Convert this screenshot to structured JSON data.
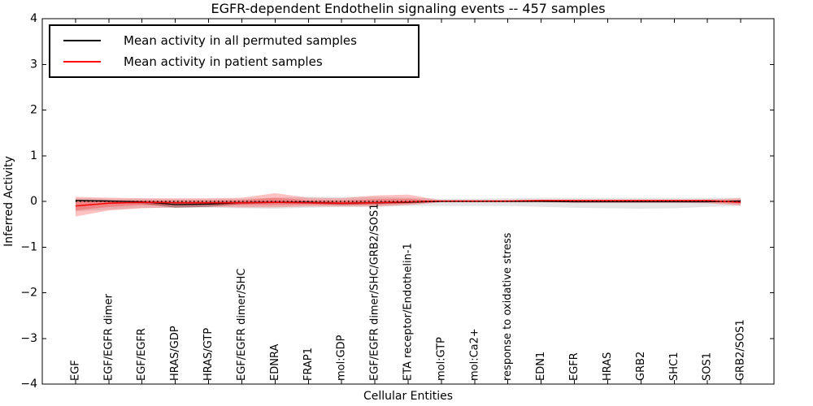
{
  "chart_data": {
    "type": "line",
    "title": "EGFR-dependent Endothelin signaling events -- 457 samples",
    "xlabel": "Cellular Entities",
    "ylabel": "Inferred Activity",
    "ylim": [
      -4,
      4
    ],
    "yticks": [
      -4,
      -3,
      -2,
      -1,
      0,
      1,
      2,
      3,
      4
    ],
    "grid": false,
    "legend_position": "upper left",
    "zero_line": {
      "style": "dotted",
      "color": "#000000",
      "y": 0
    },
    "categories": [
      "EGF",
      "EGF/EGFR dimer",
      "EGF/EGFR",
      "HRAS/GDP",
      "HRAS/GTP",
      "EGF/EGFR dimer/SHC",
      "EDNRA",
      "FRAP1",
      "mol:GDP",
      "EGF/EGFR dimer/SHC/GRB2/SOS1",
      "ETA receptor/Endothelin-1",
      "mol:GTP",
      "mol:Ca2+",
      "response to oxidative stress",
      "EDN1",
      "EGFR",
      "HRAS",
      "GRB2",
      "SHC1",
      "SOS1",
      "GRB2/SOS1"
    ],
    "legend": [
      {
        "label": "Mean activity in all permuted samples",
        "color": "#000000"
      },
      {
        "label": "Mean activity in patient samples",
        "color": "#ff0000"
      }
    ],
    "series": [
      {
        "name": "Mean activity in all permuted samples",
        "color": "#000000",
        "values": [
          0.02,
          0.01,
          -0.01,
          -0.07,
          -0.06,
          -0.03,
          -0.02,
          -0.02,
          -0.04,
          -0.03,
          -0.02,
          0.0,
          0.0,
          0.0,
          0.0,
          -0.01,
          -0.01,
          -0.01,
          -0.01,
          -0.01,
          0.01
        ]
      },
      {
        "name": "Mean activity in patient samples",
        "color": "#ff0000",
        "values": [
          -0.1,
          -0.04,
          -0.02,
          -0.03,
          -0.03,
          -0.03,
          -0.02,
          -0.03,
          -0.04,
          -0.03,
          -0.01,
          0.01,
          0.01,
          0.01,
          0.02,
          0.02,
          0.02,
          0.02,
          0.02,
          0.02,
          -0.02
        ]
      }
    ],
    "bands": [
      {
        "name": "permuted-outer-band",
        "color": "#000000",
        "opacity": 0.1,
        "upper": [
          0.07,
          0.06,
          0.06,
          0.05,
          0.05,
          0.06,
          0.08,
          0.1,
          0.1,
          0.1,
          0.08,
          0.06,
          0.06,
          0.07,
          0.08,
          0.08,
          0.08,
          0.08,
          0.08,
          0.08,
          0.08
        ],
        "lower": [
          -0.22,
          -0.18,
          -0.14,
          -0.14,
          -0.14,
          -0.15,
          -0.16,
          -0.14,
          -0.12,
          -0.12,
          -0.1,
          -0.1,
          -0.1,
          -0.1,
          -0.12,
          -0.14,
          -0.15,
          -0.16,
          -0.15,
          -0.12,
          -0.1
        ]
      },
      {
        "name": "permuted-inner-band",
        "color": "#000000",
        "opacity": 0.3,
        "upper": [
          0.035,
          0.02,
          0.01,
          -0.01,
          -0.01,
          0.0,
          0.01,
          0.0,
          -0.01,
          0.0,
          0.0,
          0.01,
          0.01,
          0.01,
          0.01,
          0.0,
          0.0,
          0.0,
          0.0,
          0.0,
          0.02
        ],
        "lower": [
          0.0,
          -0.02,
          -0.05,
          -0.14,
          -0.12,
          -0.06,
          -0.04,
          -0.05,
          -0.08,
          -0.06,
          -0.04,
          -0.01,
          -0.01,
          -0.01,
          -0.01,
          -0.02,
          -0.02,
          -0.02,
          -0.02,
          -0.02,
          -0.01
        ]
      },
      {
        "name": "patient-outer-band",
        "color": "#ff0000",
        "opacity": 0.24,
        "upper": [
          0.1,
          0.08,
          0.07,
          0.07,
          0.07,
          0.08,
          0.18,
          0.08,
          0.07,
          0.13,
          0.15,
          0.02,
          0.02,
          0.02,
          0.02,
          0.03,
          0.03,
          0.03,
          0.03,
          0.04,
          0.07
        ],
        "lower": [
          -0.33,
          -0.2,
          -0.15,
          -0.13,
          -0.12,
          -0.13,
          -0.13,
          -0.11,
          -0.11,
          -0.11,
          -0.08,
          -0.02,
          -0.02,
          -0.02,
          -0.02,
          -0.03,
          -0.03,
          -0.03,
          -0.03,
          -0.04,
          -0.09
        ]
      },
      {
        "name": "patient-inner-band",
        "color": "#ff0000",
        "opacity": 0.24,
        "upper": [
          0.02,
          0.02,
          0.02,
          0.02,
          0.02,
          0.03,
          0.08,
          0.03,
          0.02,
          0.05,
          0.06,
          0.01,
          0.01,
          0.01,
          0.01,
          0.01,
          0.01,
          0.01,
          0.01,
          0.02,
          0.03
        ],
        "lower": [
          -0.2,
          -0.12,
          -0.08,
          -0.08,
          -0.07,
          -0.08,
          -0.08,
          -0.07,
          -0.07,
          -0.07,
          -0.05,
          -0.01,
          -0.01,
          -0.01,
          -0.01,
          -0.01,
          -0.01,
          -0.01,
          -0.01,
          -0.02,
          -0.05
        ]
      }
    ]
  }
}
